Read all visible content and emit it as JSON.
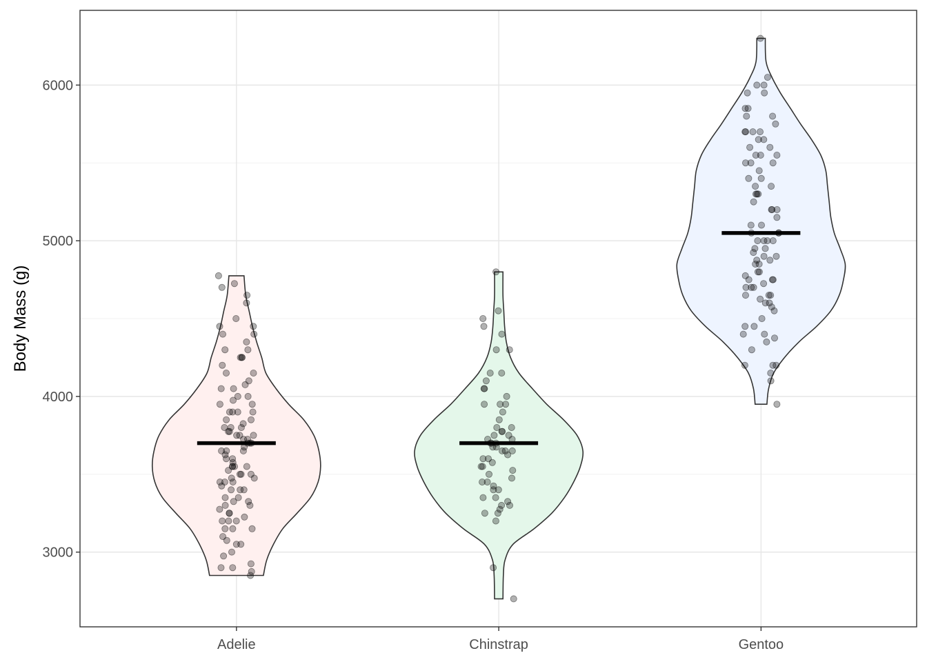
{
  "chart_data": {
    "type": "violin",
    "title": "",
    "xlabel": "",
    "ylabel": "Body Mass (g)",
    "ylim": [
      2520,
      6480
    ],
    "yticks": [
      3000,
      4000,
      5000,
      6000
    ],
    "grid": true,
    "categories": [
      "Adelie",
      "Chinstrap",
      "Gentoo"
    ],
    "series": [
      {
        "category": "Adelie",
        "fill": "#FFF0EF",
        "median": 3700,
        "min": 2850,
        "max": 4775,
        "density": [
          [
            2850,
            0.32
          ],
          [
            2950,
            0.36
          ],
          [
            3050,
            0.44
          ],
          [
            3150,
            0.55
          ],
          [
            3250,
            0.72
          ],
          [
            3350,
            0.88
          ],
          [
            3450,
            0.97
          ],
          [
            3550,
            1.0
          ],
          [
            3650,
            0.98
          ],
          [
            3750,
            0.92
          ],
          [
            3850,
            0.8
          ],
          [
            3950,
            0.62
          ],
          [
            4050,
            0.47
          ],
          [
            4150,
            0.35
          ],
          [
            4250,
            0.3
          ],
          [
            4350,
            0.24
          ],
          [
            4450,
            0.19
          ],
          [
            4550,
            0.15
          ],
          [
            4650,
            0.11
          ],
          [
            4775,
            0.09
          ]
        ],
        "points": [
          2850,
          2875,
          2900,
          2900,
          2925,
          2975,
          3000,
          3050,
          3050,
          3075,
          3100,
          3150,
          3150,
          3150,
          3200,
          3200,
          3200,
          3225,
          3250,
          3250,
          3275,
          3300,
          3300,
          3325,
          3325,
          3350,
          3350,
          3400,
          3400,
          3400,
          3425,
          3450,
          3450,
          3450,
          3475,
          3475,
          3500,
          3500,
          3500,
          3525,
          3550,
          3550,
          3550,
          3550,
          3575,
          3600,
          3600,
          3625,
          3650,
          3650,
          3650,
          3675,
          3700,
          3700,
          3700,
          3725,
          3725,
          3750,
          3750,
          3750,
          3775,
          3775,
          3800,
          3800,
          3800,
          3825,
          3850,
          3850,
          3900,
          3900,
          3900,
          3900,
          3950,
          3950,
          3975,
          4000,
          4000,
          4050,
          4050,
          4075,
          4100,
          4150,
          4150,
          4200,
          4250,
          4250,
          4250,
          4300,
          4300,
          4350,
          4400,
          4400,
          4450,
          4450,
          4500,
          4600,
          4650,
          4700,
          4725,
          4775
        ]
      },
      {
        "category": "Chinstrap",
        "fill": "#E4F7EA",
        "median": 3700,
        "min": 2700,
        "max": 4800,
        "density": [
          [
            2700,
            0.05
          ],
          [
            2850,
            0.055
          ],
          [
            2950,
            0.075
          ],
          [
            3050,
            0.17
          ],
          [
            3150,
            0.42
          ],
          [
            3250,
            0.63
          ],
          [
            3350,
            0.78
          ],
          [
            3450,
            0.89
          ],
          [
            3550,
            0.97
          ],
          [
            3650,
            1.0
          ],
          [
            3750,
            0.93
          ],
          [
            3850,
            0.77
          ],
          [
            3950,
            0.57
          ],
          [
            4050,
            0.4
          ],
          [
            4150,
            0.24
          ],
          [
            4250,
            0.14
          ],
          [
            4350,
            0.09
          ],
          [
            4450,
            0.07
          ],
          [
            4550,
            0.06
          ],
          [
            4650,
            0.05
          ],
          [
            4800,
            0.05
          ]
        ],
        "points": [
          2700,
          2900,
          3200,
          3250,
          3250,
          3275,
          3300,
          3300,
          3325,
          3350,
          3350,
          3400,
          3400,
          3425,
          3450,
          3450,
          3475,
          3500,
          3525,
          3550,
          3550,
          3575,
          3600,
          3600,
          3625,
          3650,
          3650,
          3650,
          3675,
          3675,
          3700,
          3700,
          3700,
          3725,
          3725,
          3750,
          3750,
          3775,
          3775,
          3800,
          3800,
          3850,
          3900,
          3950,
          3950,
          3950,
          4000,
          4050,
          4050,
          4100,
          4150,
          4150,
          4300,
          4300,
          4400,
          4450,
          4500,
          4550,
          4800
        ]
      },
      {
        "category": "Gentoo",
        "fill": "#EEF4FF",
        "median": 5050,
        "min": 3950,
        "max": 6300,
        "density": [
          [
            3950,
            0.07
          ],
          [
            4050,
            0.09
          ],
          [
            4150,
            0.15
          ],
          [
            4250,
            0.28
          ],
          [
            4350,
            0.45
          ],
          [
            4450,
            0.66
          ],
          [
            4550,
            0.83
          ],
          [
            4650,
            0.93
          ],
          [
            4750,
            0.98
          ],
          [
            4850,
            1.0
          ],
          [
            4950,
            0.94
          ],
          [
            5050,
            0.87
          ],
          [
            5150,
            0.83
          ],
          [
            5250,
            0.81
          ],
          [
            5350,
            0.79
          ],
          [
            5450,
            0.77
          ],
          [
            5550,
            0.71
          ],
          [
            5650,
            0.6
          ],
          [
            5750,
            0.47
          ],
          [
            5850,
            0.35
          ],
          [
            5950,
            0.23
          ],
          [
            6050,
            0.13
          ],
          [
            6150,
            0.06
          ],
          [
            6300,
            0.05
          ]
        ],
        "points": [
          3950,
          4100,
          4150,
          4200,
          4200,
          4200,
          4300,
          4350,
          4375,
          4400,
          4400,
          4450,
          4450,
          4500,
          4550,
          4575,
          4600,
          4600,
          4625,
          4650,
          4650,
          4650,
          4700,
          4700,
          4700,
          4725,
          4750,
          4750,
          4750,
          4775,
          4800,
          4800,
          4850,
          4850,
          4875,
          4875,
          4900,
          4900,
          4925,
          4950,
          4950,
          5000,
          5000,
          5000,
          5000,
          5050,
          5050,
          5050,
          5100,
          5100,
          5150,
          5200,
          5200,
          5200,
          5250,
          5300,
          5300,
          5300,
          5350,
          5350,
          5400,
          5400,
          5450,
          5500,
          5500,
          5500,
          5550,
          5550,
          5550,
          5600,
          5600,
          5650,
          5650,
          5700,
          5700,
          5700,
          5700,
          5750,
          5800,
          5800,
          5850,
          5850,
          5950,
          5950,
          6000,
          6000,
          6050,
          6300
        ]
      }
    ]
  }
}
